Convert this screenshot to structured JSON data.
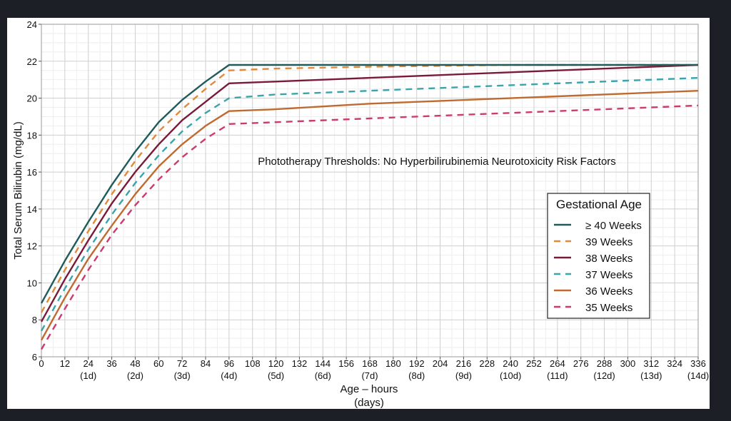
{
  "chart_data": {
    "type": "line",
    "title": "Phototherapy Thresholds:  No Hyperbilirubinemia Neurotoxicity Risk Factors",
    "xlabel": "Age – hours",
    "xlabel_sub": "(days)",
    "ylabel": "Total Serum Bilirubin (mg/dL)",
    "xlim": [
      0,
      336
    ],
    "ylim": [
      6,
      24
    ],
    "x_ticks": [
      0,
      12,
      24,
      36,
      48,
      60,
      72,
      84,
      96,
      108,
      120,
      132,
      144,
      156,
      168,
      180,
      192,
      204,
      216,
      228,
      240,
      252,
      264,
      276,
      288,
      300,
      312,
      324,
      336
    ],
    "x_day_labels": [
      {
        "x": 24,
        "label": "(1d)"
      },
      {
        "x": 48,
        "label": "(2d)"
      },
      {
        "x": 72,
        "label": "(3d)"
      },
      {
        "x": 96,
        "label": "(4d)"
      },
      {
        "x": 120,
        "label": "(5d)"
      },
      {
        "x": 144,
        "label": "(6d)"
      },
      {
        "x": 168,
        "label": "(7d)"
      },
      {
        "x": 192,
        "label": "(8d)"
      },
      {
        "x": 216,
        "label": "(9d)"
      },
      {
        "x": 240,
        "label": "(10d)"
      },
      {
        "x": 264,
        "label": "(11d)"
      },
      {
        "x": 288,
        "label": "(12d)"
      },
      {
        "x": 312,
        "label": "(13d)"
      },
      {
        "x": 336,
        "label": "(14d)"
      }
    ],
    "y_ticks": [
      6,
      8,
      10,
      12,
      14,
      16,
      18,
      20,
      22,
      24
    ],
    "grid": true,
    "legend": {
      "title": "Gestational Age",
      "position": "right"
    },
    "series": [
      {
        "name": "≥ 40 Weeks",
        "color": "#1f5b5b",
        "dash": "solid",
        "points": [
          [
            0,
            8.9
          ],
          [
            12,
            11.2
          ],
          [
            24,
            13.3
          ],
          [
            36,
            15.3
          ],
          [
            48,
            17.1
          ],
          [
            60,
            18.7
          ],
          [
            72,
            19.9
          ],
          [
            84,
            20.9
          ],
          [
            96,
            21.8
          ],
          [
            120,
            21.8
          ],
          [
            168,
            21.8
          ],
          [
            240,
            21.8
          ],
          [
            336,
            21.8
          ]
        ]
      },
      {
        "name": "39 Weeks",
        "color": "#e08a3c",
        "dash": "dashed",
        "points": [
          [
            0,
            8.4
          ],
          [
            12,
            10.7
          ],
          [
            24,
            12.8
          ],
          [
            36,
            14.8
          ],
          [
            48,
            16.6
          ],
          [
            60,
            18.2
          ],
          [
            72,
            19.4
          ],
          [
            84,
            20.5
          ],
          [
            96,
            21.5
          ],
          [
            120,
            21.6
          ],
          [
            168,
            21.7
          ],
          [
            240,
            21.8
          ],
          [
            336,
            21.8
          ]
        ]
      },
      {
        "name": "38 Weeks",
        "color": "#7a1a3a",
        "dash": "solid",
        "points": [
          [
            0,
            7.9
          ],
          [
            12,
            10.2
          ],
          [
            24,
            12.3
          ],
          [
            36,
            14.3
          ],
          [
            48,
            16.0
          ],
          [
            60,
            17.5
          ],
          [
            72,
            18.8
          ],
          [
            84,
            19.8
          ],
          [
            96,
            20.8
          ],
          [
            120,
            20.9
          ],
          [
            168,
            21.1
          ],
          [
            240,
            21.4
          ],
          [
            336,
            21.8
          ]
        ]
      },
      {
        "name": "37 Weeks",
        "color": "#3aa3ad",
        "dash": "dashed",
        "points": [
          [
            0,
            7.4
          ],
          [
            12,
            9.7
          ],
          [
            24,
            11.8
          ],
          [
            36,
            13.7
          ],
          [
            48,
            15.4
          ],
          [
            60,
            16.9
          ],
          [
            72,
            18.2
          ],
          [
            84,
            19.2
          ],
          [
            96,
            20.0
          ],
          [
            120,
            20.2
          ],
          [
            168,
            20.4
          ],
          [
            240,
            20.7
          ],
          [
            336,
            21.1
          ]
        ]
      },
      {
        "name": "36 Weeks",
        "color": "#bf6a2f",
        "dash": "solid",
        "points": [
          [
            0,
            6.9
          ],
          [
            12,
            9.2
          ],
          [
            24,
            11.3
          ],
          [
            36,
            13.1
          ],
          [
            48,
            14.8
          ],
          [
            60,
            16.3
          ],
          [
            72,
            17.5
          ],
          [
            84,
            18.5
          ],
          [
            96,
            19.3
          ],
          [
            120,
            19.4
          ],
          [
            168,
            19.7
          ],
          [
            240,
            20.0
          ],
          [
            336,
            20.4
          ]
        ]
      },
      {
        "name": "35 Weeks",
        "color": "#cc3a70",
        "dash": "dashed",
        "points": [
          [
            0,
            6.4
          ],
          [
            12,
            8.6
          ],
          [
            24,
            10.7
          ],
          [
            36,
            12.6
          ],
          [
            48,
            14.2
          ],
          [
            60,
            15.6
          ],
          [
            72,
            16.8
          ],
          [
            84,
            17.8
          ],
          [
            96,
            18.6
          ],
          [
            120,
            18.7
          ],
          [
            168,
            18.9
          ],
          [
            240,
            19.2
          ],
          [
            336,
            19.6
          ]
        ]
      }
    ]
  }
}
